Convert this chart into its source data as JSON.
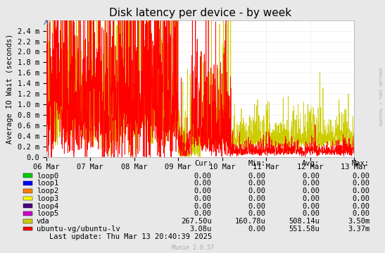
{
  "title": "Disk latency per device - by week",
  "ylabel": "Average IO Wait (seconds)",
  "background_color": "#e8e8e8",
  "plot_background_color": "#ffffff",
  "grid_color": "#cccccc",
  "ytick_labels": [
    "0.0",
    "0.2 m",
    "0.4 m",
    "0.6 m",
    "0.8 m",
    "1.0 m",
    "1.2 m",
    "1.4 m",
    "1.6 m",
    "1.8 m",
    "2.0 m",
    "2.2 m",
    "2.4 m"
  ],
  "ytick_values": [
    0.0,
    0.0002,
    0.0004,
    0.0006,
    0.0008,
    0.001,
    0.0012,
    0.0014,
    0.0016,
    0.0018,
    0.002,
    0.0022,
    0.0024
  ],
  "xtick_labels": [
    "06 Mar",
    "07 Mar",
    "08 Mar",
    "09 Mar",
    "10 Mar",
    "11 Mar",
    "12 Mar",
    "13 Mar"
  ],
  "legend_entries": [
    {
      "label": "loop0",
      "color": "#00cc00"
    },
    {
      "label": "loop1",
      "color": "#0000ff"
    },
    {
      "label": "loop2",
      "color": "#ff7f00"
    },
    {
      "label": "loop3",
      "color": "#ffff00"
    },
    {
      "label": "loop4",
      "color": "#4b0082"
    },
    {
      "label": "loop5",
      "color": "#cc00cc"
    },
    {
      "label": "vda",
      "color": "#cccc00"
    },
    {
      "label": "ubuntu-vg/ubuntu-lv",
      "color": "#ff0000"
    }
  ],
  "table_headers": [
    "Cur:",
    "Min:",
    "Avg:",
    "Max:"
  ],
  "table_data": [
    [
      "0.00",
      "0.00",
      "0.00",
      "0.00"
    ],
    [
      "0.00",
      "0.00",
      "0.00",
      "0.00"
    ],
    [
      "0.00",
      "0.00",
      "0.00",
      "0.00"
    ],
    [
      "0.00",
      "0.00",
      "0.00",
      "0.00"
    ],
    [
      "0.00",
      "0.00",
      "0.00",
      "0.00"
    ],
    [
      "0.00",
      "0.00",
      "0.00",
      "0.00"
    ],
    [
      "267.50u",
      "160.78u",
      "508.14u",
      "3.50m"
    ],
    [
      "3.08u",
      "0.00",
      "551.58u",
      "3.37m"
    ]
  ],
  "footer": "Munin 2.0.57",
  "watermark": "RRDTOOL / TOBI OETIKER",
  "last_update": "Last update: Thu Mar 13 20:40:39 2025",
  "ylim": [
    0.0,
    0.0026
  ],
  "title_fontsize": 11,
  "axis_fontsize": 7.5,
  "legend_fontsize": 7.5
}
